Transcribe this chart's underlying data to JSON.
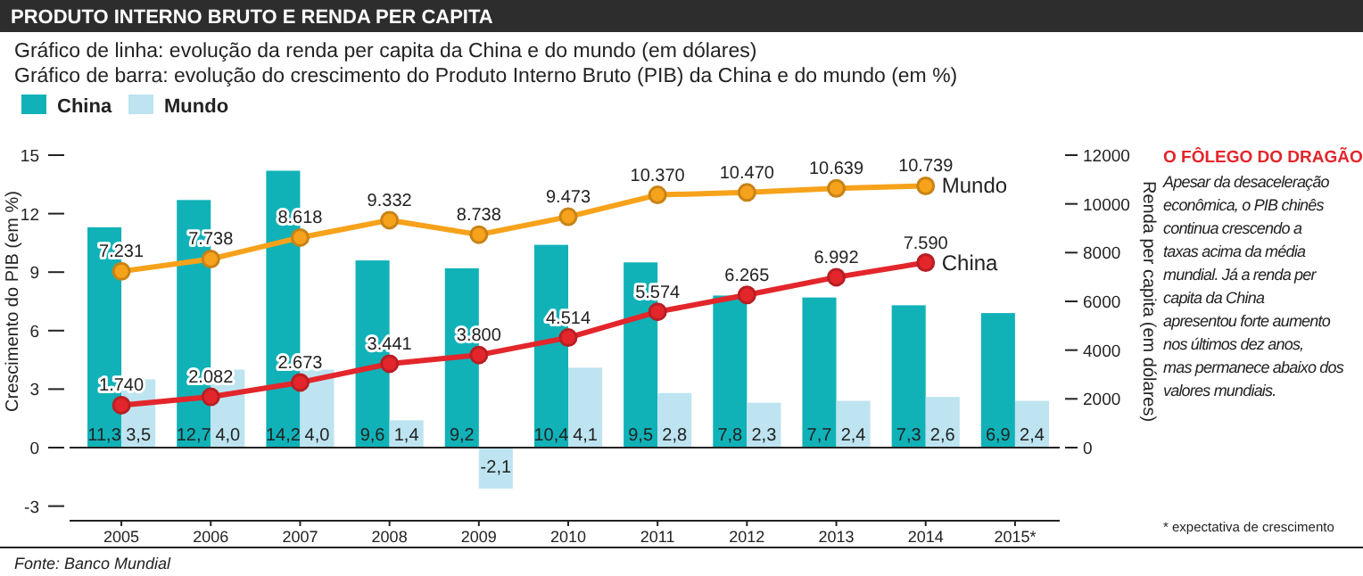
{
  "chart_data": {
    "type": "bar",
    "title": "PRODUTO INTERNO BRUTO E RENDA PER CAPITA",
    "subtitle": "Gráfico de linha: evolução da renda per capita da China e do mundo (em dólares)\nGráfico de barra: evolução do crescimento do Produto Interno Bruto (PIB) da China e do mundo (em %)",
    "ylabel": "Crescimento do PIB (em %)",
    "y2label": "Renda per capita (em dólares)",
    "categories": [
      "2005",
      "2006",
      "2007",
      "2008",
      "2009",
      "2010",
      "2011",
      "2012",
      "2013",
      "2014",
      "2015*"
    ],
    "ylim": [
      -3.75,
      15
    ],
    "yticks": [
      -3,
      0,
      3,
      6,
      9,
      12,
      15
    ],
    "y2lim": [
      -3000,
      12000
    ],
    "y2ticks": [
      0,
      2000,
      4000,
      6000,
      8000,
      10000,
      12000
    ],
    "legend": "top left",
    "marker": "circle",
    "series": [
      {
        "name": "China",
        "color": "#10b2b8",
        "values": [
          11.3,
          12.7,
          14.2,
          9.6,
          9.2,
          10.4,
          9.5,
          7.8,
          7.7,
          7.3,
          6.9
        ],
        "value_labels": [
          "11,3",
          "12,7",
          "14,2",
          "9,6",
          "9,2",
          "10,4",
          "9,5",
          "7,8",
          "7,7",
          "7,3",
          "6,9"
        ]
      },
      {
        "name": "Mundo",
        "color": "#bde4f0",
        "values": [
          3.5,
          4.0,
          4.0,
          1.4,
          -2.1,
          4.1,
          2.8,
          2.3,
          2.4,
          2.6,
          2.4
        ],
        "value_labels": [
          "3,5",
          "4,0",
          "4,0",
          "1,4",
          "-2,1",
          "4,1",
          "2,8",
          "2,3",
          "2,4",
          "2,6",
          "2,4"
        ]
      },
      {
        "name": "Mundo",
        "type": "line",
        "axis": "y2",
        "color": "#f7a21b",
        "values": [
          7231,
          7738,
          8618,
          9332,
          8738,
          9473,
          10370,
          10470,
          10639,
          10739,
          null
        ],
        "value_labels": [
          "7.231",
          "7.738",
          "8.618",
          "9.332",
          "8.738",
          "9.473",
          "10.370",
          "10.470",
          "10.639",
          "10.739",
          null
        ]
      },
      {
        "name": "China",
        "type": "line",
        "axis": "y2",
        "color": "#e3262b",
        "values": [
          1740,
          2082,
          2673,
          3441,
          3800,
          4514,
          5574,
          6265,
          6992,
          7590,
          null
        ],
        "value_labels": [
          "1.740",
          "2.082",
          "2.673",
          "3.441",
          "3.800",
          "4.514",
          "5.574",
          "6.265",
          "6.992",
          "7.590",
          null
        ]
      }
    ],
    "annotations": [
      "O FÔLEGO DO DRAGÃO",
      "Apesar da desaceleração econômica, o PIB chinês continua crescendo a taxas acima da média mundial. Já a renda per capita da China apresentou forte aumento nos últimos dez anos, mas permanece abaixo dos valores mundiais.",
      "* expectativa de crescimento",
      "Fonte: Banco Mundial"
    ]
  }
}
